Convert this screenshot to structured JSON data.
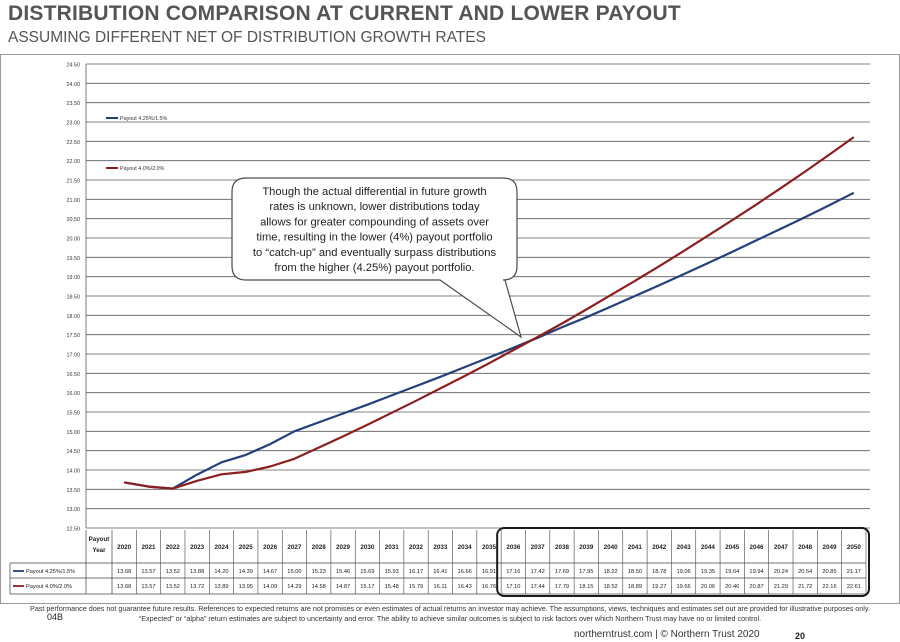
{
  "header": {
    "title": "DISTRIBUTION COMPARISON AT CURRENT AND LOWER PAYOUT",
    "subtitle": "ASSUMING DIFFERENT NET OF DISTRIBUTION GROWTH RATES"
  },
  "chart_data": {
    "type": "line",
    "title": "",
    "xlabel": "",
    "ylabel": "",
    "ylim": [
      12.5,
      24.5
    ],
    "y_ticks": [
      "24.50",
      "24.00",
      "23.50",
      "23.00",
      "22.50",
      "22.00",
      "21.50",
      "21.00",
      "20.50",
      "20.00",
      "19.50",
      "19.00",
      "18.50",
      "18.00",
      "17.50",
      "17.00",
      "16.50",
      "16.00",
      "15.50",
      "15.00",
      "14.50",
      "14.00",
      "13.50",
      "13.00",
      "12.50"
    ],
    "grid": true,
    "legend_position": "top-left",
    "table_header_label": "Payout Year",
    "categories": [
      "2020",
      "2021",
      "2022",
      "2023",
      "2024",
      "2025",
      "2026",
      "2027",
      "2028",
      "2029",
      "2030",
      "2031",
      "2032",
      "2033",
      "2034",
      "2035",
      "2036",
      "2037",
      "2038",
      "2039",
      "2040",
      "2041",
      "2042",
      "2043",
      "2044",
      "2045",
      "2046",
      "2047",
      "2048",
      "2049",
      "2050"
    ],
    "series": [
      {
        "name": "Payout 4.25%/1.5%",
        "color": "#24407a",
        "values": [
          13.68,
          13.57,
          13.52,
          13.88,
          14.2,
          14.39,
          14.67,
          15.0,
          15.23,
          15.46,
          15.69,
          15.93,
          16.17,
          16.41,
          16.66,
          16.91,
          17.16,
          17.42,
          17.69,
          17.95,
          18.22,
          18.5,
          18.78,
          19.06,
          19.35,
          19.64,
          19.94,
          20.24,
          20.54,
          20.85,
          21.17
        ]
      },
      {
        "name": "Payout 4.0%/2.0%",
        "color": "#8b1f1f",
        "values": [
          13.68,
          13.57,
          13.52,
          13.72,
          13.89,
          13.95,
          14.09,
          14.29,
          14.58,
          14.87,
          15.17,
          15.48,
          15.79,
          16.11,
          16.43,
          16.76,
          17.1,
          17.44,
          17.79,
          18.15,
          18.52,
          18.89,
          19.27,
          19.66,
          20.06,
          20.46,
          20.87,
          21.29,
          21.72,
          22.16,
          22.61
        ]
      }
    ],
    "annotation": "Though the actual differential in future growth rates is unknown, lower distributions today allows for greater compounding of assets over time, resulting in the lower (4%) payout portfolio to “catch-up” and eventually surpass distributions from the higher (4.25%) payout portfolio."
  },
  "footer": {
    "disclaimer": "Past performance does not guarantee future results. References to expected returns are not promises or even estimates of actual returns an investor may achieve. The assumptions, views, techniques and estimates set out are provided for illustrative purposes only. “Expected” or “alpha” return estimates are subject to uncertainty and error. The ability to achieve similar outcomes is subject to risk factors over which Northern Trust may have no or limited control.",
    "site": "northerntrust.com  |  © Northern Trust 2020",
    "page_number": "20",
    "stray_mark": "04B"
  }
}
